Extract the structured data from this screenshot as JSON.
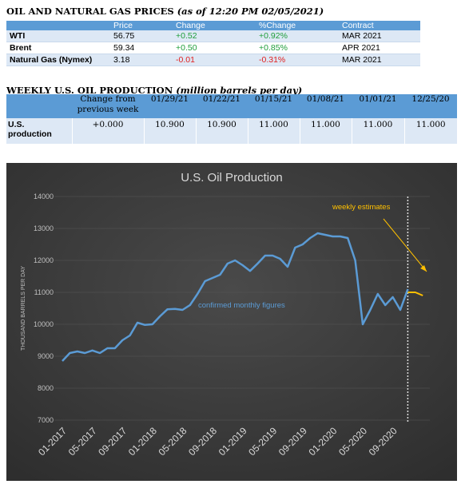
{
  "prices": {
    "title": "OIL AND NATURAL GAS PRICES",
    "subtitle": "(as of 12:20 PM 02/05/2021)",
    "headers": [
      "",
      "Price",
      "Change",
      "%Change",
      "Contract"
    ],
    "rows": [
      {
        "name": "WTI",
        "price": "56.75",
        "change": "+0.52",
        "pct": "+0.92%",
        "contract": "MAR 2021",
        "dir": "pos"
      },
      {
        "name": "Brent",
        "price": "59.34",
        "change": "+0.50",
        "pct": "+0.85%",
        "contract": "APR 2021",
        "dir": "pos"
      },
      {
        "name": "Natural Gas (Nymex)",
        "price": "3.18",
        "change": "-0.01",
        "pct": "-0.31%",
        "contract": "MAR 2021",
        "dir": "neg"
      }
    ]
  },
  "weekly": {
    "title": "WEEKLY U.S. OIL PRODUCTION",
    "subtitle": "(million barrels per day)",
    "headers": [
      "",
      "Change from previous week",
      "01/29/21",
      "01/22/21",
      "01/15/21",
      "01/08/21",
      "01/01/21",
      "12/25/20"
    ],
    "row_label": "U.S. production",
    "values": [
      "+0.000",
      "10.900",
      "10.900",
      "11.000",
      "11.000",
      "11.000",
      "11.000"
    ]
  },
  "chart_data": {
    "type": "line",
    "title": "U.S. Oil Production",
    "ylabel": "THOUSAND BARRELS PER DAY",
    "xlabel": "",
    "ylim": [
      7000,
      14000
    ],
    "yticks": [
      7000,
      8000,
      9000,
      10000,
      11000,
      12000,
      13000,
      14000
    ],
    "xtick_labels": [
      "01-2017",
      "05-2017",
      "09-2017",
      "01-2018",
      "05-2018",
      "09-2018",
      "01-2019",
      "05-2019",
      "09-2019",
      "01-2020",
      "05-2020",
      "09-2020"
    ],
    "x_start": "2017-01",
    "annotations": {
      "monthly": "confirmed monthly figures",
      "weekly": "weekly estimates"
    },
    "colors": {
      "background": "#404040",
      "monthly": "#5b9bd5",
      "weekly": "#ffc000",
      "text": "#d9d9d9"
    },
    "series": [
      {
        "name": "confirmed monthly figures",
        "x": [
          "2017-01",
          "2017-02",
          "2017-03",
          "2017-04",
          "2017-05",
          "2017-06",
          "2017-07",
          "2017-08",
          "2017-09",
          "2017-10",
          "2017-11",
          "2017-12",
          "2018-01",
          "2018-02",
          "2018-03",
          "2018-04",
          "2018-05",
          "2018-06",
          "2018-07",
          "2018-08",
          "2018-09",
          "2018-10",
          "2018-11",
          "2018-12",
          "2019-01",
          "2019-02",
          "2019-03",
          "2019-04",
          "2019-05",
          "2019-06",
          "2019-07",
          "2019-08",
          "2019-09",
          "2019-10",
          "2019-11",
          "2019-12",
          "2020-01",
          "2020-02",
          "2020-03",
          "2020-04",
          "2020-05",
          "2020-06",
          "2020-07",
          "2020-08",
          "2020-09",
          "2020-10",
          "2020-11"
        ],
        "values": [
          8850,
          9100,
          9150,
          9100,
          9180,
          9100,
          9250,
          9250,
          9500,
          9650,
          10050,
          9980,
          10000,
          10250,
          10470,
          10480,
          10450,
          10600,
          10950,
          11350,
          11450,
          11550,
          11900,
          12000,
          11850,
          11670,
          11900,
          12150,
          12150,
          12050,
          11800,
          12400,
          12500,
          12700,
          12850,
          12800,
          12750,
          12750,
          12700,
          12000,
          10000,
          10450,
          10950,
          10600,
          10850,
          10450,
          11100
        ]
      },
      {
        "name": "weekly estimates",
        "x": [
          "2020-11",
          "2020-12",
          "2021-01"
        ],
        "values": [
          11000,
          11000,
          10900
        ]
      }
    ]
  }
}
